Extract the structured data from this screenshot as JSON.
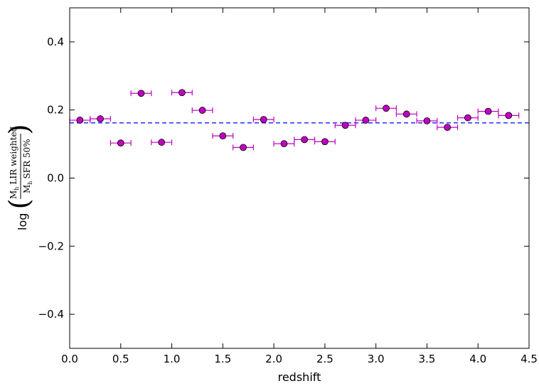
{
  "chart_data": {
    "type": "scatter",
    "title": "",
    "xlabel": "redshift",
    "ylabel": {
      "prefix": "log",
      "numerator": "M",
      "numerator_sub": "h",
      "numerator_rest": "LIR weighted",
      "denominator": "M",
      "denominator_sub": "h",
      "denominator_rest": "SFR 50%"
    },
    "xlim": [
      0.0,
      4.5
    ],
    "ylim": [
      -0.5,
      0.5
    ],
    "xticks": [
      "0.0",
      "0.5",
      "1.0",
      "1.5",
      "2.0",
      "2.5",
      "3.0",
      "3.5",
      "4.0",
      "4.5"
    ],
    "yticks": [
      "−0.4",
      "−0.2",
      "0.0",
      "0.2",
      "0.4"
    ],
    "grid": false,
    "marker_color": "#c000c0",
    "errorbar_color": "#c000c0",
    "reference_line_color": "#0000ff",
    "reference_line_y": 0.162,
    "x_error": 0.1,
    "points": [
      {
        "x": 0.1,
        "y": 0.17
      },
      {
        "x": 0.3,
        "y": 0.174
      },
      {
        "x": 0.5,
        "y": 0.103
      },
      {
        "x": 0.7,
        "y": 0.249
      },
      {
        "x": 0.9,
        "y": 0.105
      },
      {
        "x": 1.1,
        "y": 0.251
      },
      {
        "x": 1.3,
        "y": 0.199
      },
      {
        "x": 1.5,
        "y": 0.124
      },
      {
        "x": 1.7,
        "y": 0.09
      },
      {
        "x": 1.9,
        "y": 0.172
      },
      {
        "x": 2.1,
        "y": 0.101
      },
      {
        "x": 2.3,
        "y": 0.113
      },
      {
        "x": 2.5,
        "y": 0.107
      },
      {
        "x": 2.7,
        "y": 0.155
      },
      {
        "x": 2.9,
        "y": 0.17
      },
      {
        "x": 3.1,
        "y": 0.205
      },
      {
        "x": 3.3,
        "y": 0.188
      },
      {
        "x": 3.5,
        "y": 0.168
      },
      {
        "x": 3.7,
        "y": 0.149
      },
      {
        "x": 3.9,
        "y": 0.177
      },
      {
        "x": 4.1,
        "y": 0.196
      },
      {
        "x": 4.3,
        "y": 0.184
      }
    ]
  }
}
